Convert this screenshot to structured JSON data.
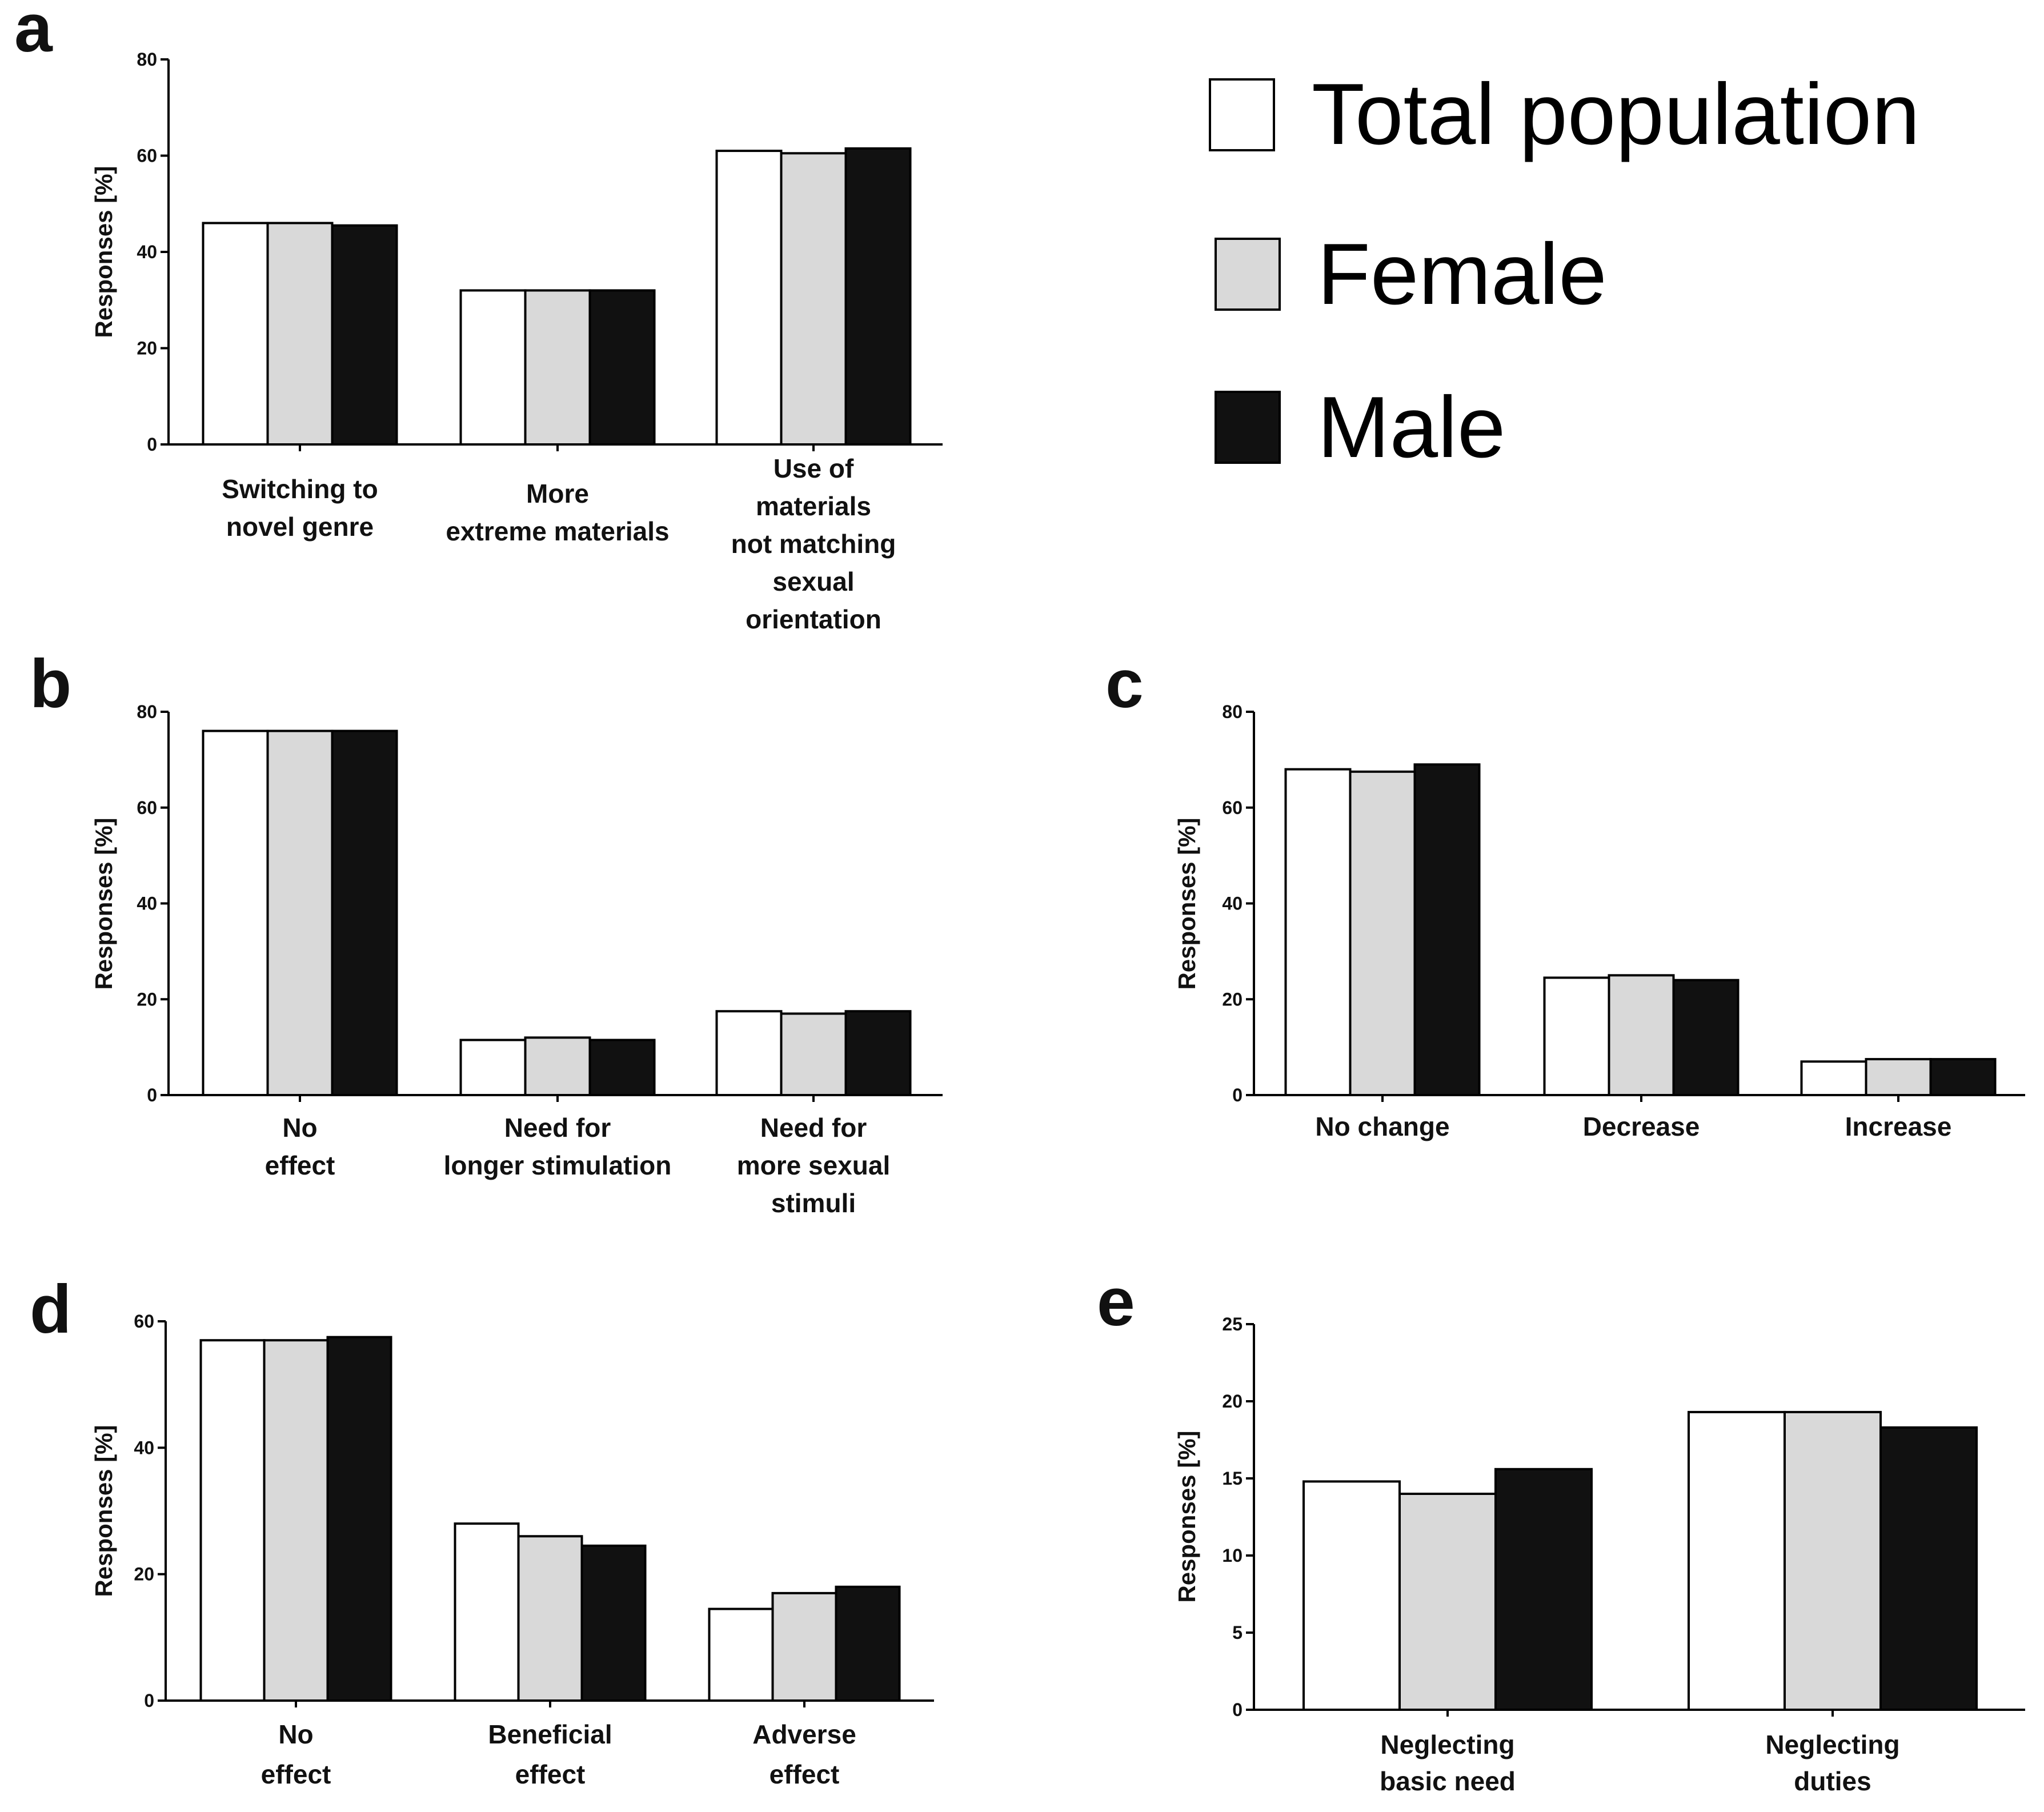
{
  "legend": {
    "items": [
      {
        "label": "Total population",
        "color": "#ffffff"
      },
      {
        "label": "Female",
        "color": "#d9d9d9"
      },
      {
        "label": "Male",
        "color": "#111111"
      }
    ]
  },
  "chart_data": [
    {
      "panel": "a",
      "type": "bar",
      "ylabel": "Responses [%]",
      "ylim": [
        0,
        80
      ],
      "yticks": [
        "0",
        "20",
        "40",
        "60",
        "80"
      ],
      "categories": [
        [
          "Switching to",
          "novel genre"
        ],
        [
          "More",
          "extreme materials"
        ],
        [
          "Use of",
          "materials",
          "not matching",
          "sexual",
          "orientation"
        ]
      ],
      "series": [
        {
          "name": "Total population",
          "values": [
            46,
            32,
            61
          ]
        },
        {
          "name": "Female",
          "values": [
            46,
            32,
            60.5
          ]
        },
        {
          "name": "Male",
          "values": [
            45.5,
            32,
            61.5
          ]
        }
      ]
    },
    {
      "panel": "b",
      "type": "bar",
      "ylabel": "Responses [%]",
      "ylim": [
        0,
        80
      ],
      "yticks": [
        "0",
        "20",
        "40",
        "60",
        "80"
      ],
      "categories": [
        [
          "No",
          "effect"
        ],
        [
          "Need for",
          "longer stimulation"
        ],
        [
          "Need for",
          "more sexual",
          "stimuli"
        ]
      ],
      "series": [
        {
          "name": "Total population",
          "values": [
            76,
            11.5,
            17.5
          ]
        },
        {
          "name": "Female",
          "values": [
            76,
            12,
            17
          ]
        },
        {
          "name": "Male",
          "values": [
            76,
            11.5,
            17.5
          ]
        }
      ]
    },
    {
      "panel": "c",
      "type": "bar",
      "ylabel": "Responses [%]",
      "ylim": [
        0,
        80
      ],
      "yticks": [
        "0",
        "20",
        "40",
        "60",
        "80"
      ],
      "categories": [
        [
          "No change"
        ],
        [
          "Decrease"
        ],
        [
          "Increase"
        ]
      ],
      "series": [
        {
          "name": "Total population",
          "values": [
            68,
            24.5,
            7
          ]
        },
        {
          "name": "Female",
          "values": [
            67.5,
            25,
            7.5
          ]
        },
        {
          "name": "Male",
          "values": [
            69,
            24,
            7.5
          ]
        }
      ]
    },
    {
      "panel": "d",
      "type": "bar",
      "ylabel": "Responses [%]",
      "ylim": [
        0,
        60
      ],
      "yticks": [
        "0",
        "20",
        "40",
        "60"
      ],
      "categories": [
        [
          "No",
          "effect"
        ],
        [
          "Beneficial",
          "effect"
        ],
        [
          "Adverse",
          "effect"
        ]
      ],
      "series": [
        {
          "name": "Total population",
          "values": [
            57,
            28,
            14.5
          ]
        },
        {
          "name": "Female",
          "values": [
            57,
            26,
            17
          ]
        },
        {
          "name": "Male",
          "values": [
            57.5,
            24.5,
            18
          ]
        }
      ]
    },
    {
      "panel": "e",
      "type": "bar",
      "ylabel": "Responses [%]",
      "ylim": [
        0,
        25
      ],
      "yticks": [
        "0",
        "5",
        "10",
        "15",
        "20",
        "25"
      ],
      "categories": [
        [
          "Neglecting",
          "basic need"
        ],
        [
          "Neglecting",
          "duties"
        ]
      ],
      "series": [
        {
          "name": "Total population",
          "values": [
            14.8,
            19.3
          ]
        },
        {
          "name": "Female",
          "values": [
            14,
            19.3
          ]
        },
        {
          "name": "Male",
          "values": [
            15.6,
            18.3
          ]
        }
      ]
    }
  ]
}
